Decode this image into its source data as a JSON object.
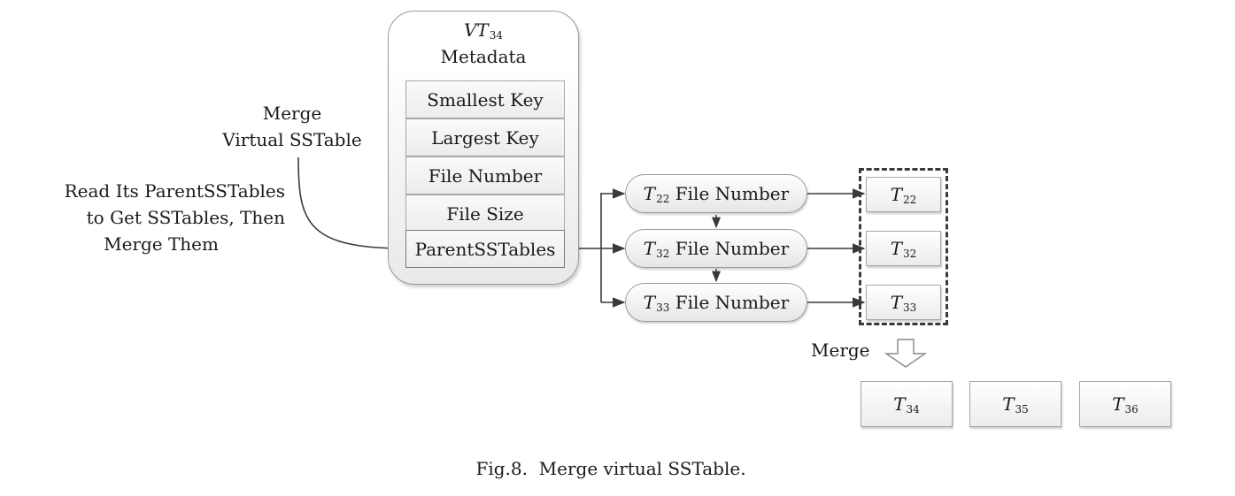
{
  "virtual_sstable": {
    "name": "VT",
    "name_sub": "34",
    "title": "Metadata",
    "fields": [
      "Smallest Key",
      "Largest Key",
      "File Number",
      "File Size",
      "ParentSSTables"
    ]
  },
  "labels": {
    "merge_vt_line1": "Merge",
    "merge_vt_line2": "Virtual SSTable",
    "read_line1": "Read Its ParentSSTables",
    "read_line2": "to Get SSTables, Then",
    "read_line3": "Merge Them",
    "merge_arrow_label": "Merge"
  },
  "parent_entries": [
    {
      "t": "T",
      "sub": "22",
      "label": "File Number"
    },
    {
      "t": "T",
      "sub": "32",
      "label": "File Number"
    },
    {
      "t": "T",
      "sub": "33",
      "label": "File Number"
    }
  ],
  "parent_tables": [
    {
      "t": "T",
      "sub": "22"
    },
    {
      "t": "T",
      "sub": "32"
    },
    {
      "t": "T",
      "sub": "33"
    }
  ],
  "output_tables": [
    {
      "t": "T",
      "sub": "34"
    },
    {
      "t": "T",
      "sub": "35"
    },
    {
      "t": "T",
      "sub": "36"
    }
  ],
  "caption": "Fig.8.  Merge virtual SSTable."
}
